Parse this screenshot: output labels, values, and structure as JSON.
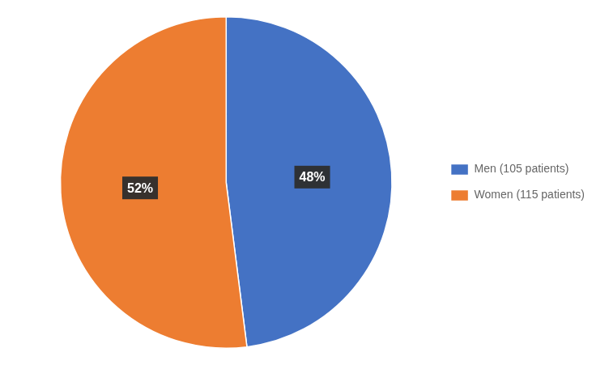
{
  "chart_data": {
    "type": "pie",
    "categories": [
      "Men (105 patients)",
      "Women (115 patients)"
    ],
    "values": [
      48,
      52
    ],
    "value_labels": [
      "48%",
      "52%"
    ],
    "colors": [
      "#4472C4",
      "#ED7D31"
    ],
    "data_labels": true,
    "legend": "right"
  }
}
